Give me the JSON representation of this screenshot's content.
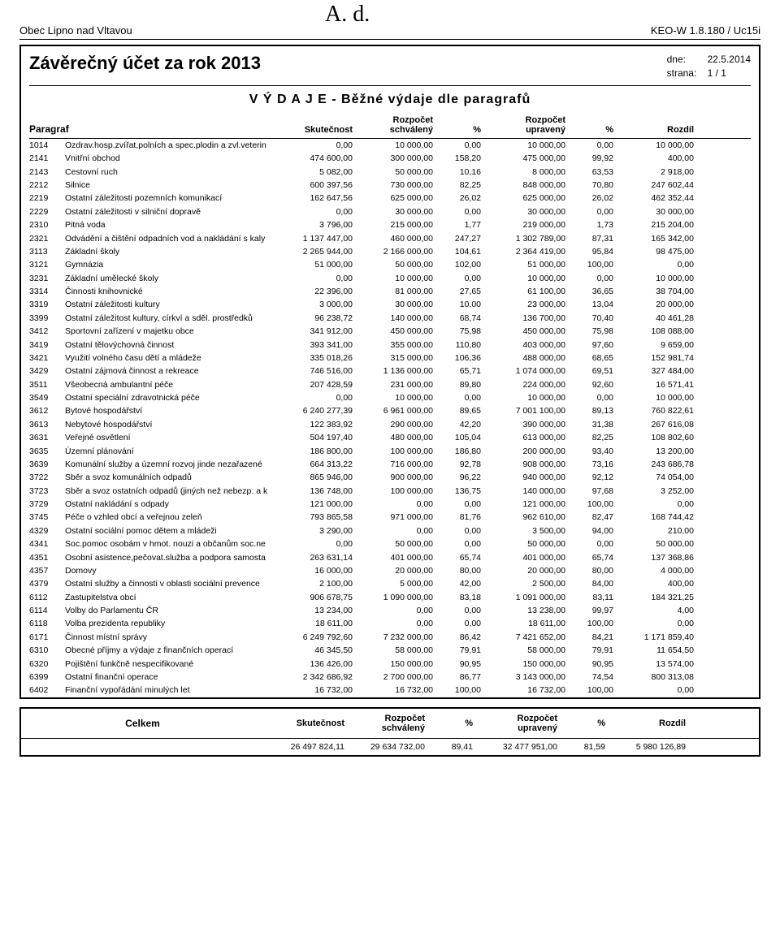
{
  "handwritten": "A. d.",
  "org_name": "Obec Lipno nad Vltavou",
  "keo": "KEO-W 1.8.180 / Uc15i",
  "main_title": "Závěrečný účet za rok 2013",
  "dne_label": "dne:",
  "dne_value": "22.5.2014",
  "strana_label": "strana:",
  "strana_value": "1 / 1",
  "subtitle": "V Ý D A J E  -  Běžné výdaje dle paragrafů",
  "col_paragraf": "Paragraf",
  "col_skutecnost": "Skutečnost",
  "col_rozpocet_schvaleny_l1": "Rozpočet",
  "col_rozpocet_schvaleny_l2": "schválený",
  "col_pct": "%",
  "col_rozpocet_upraveny_l1": "Rozpočet",
  "col_rozpocet_upraveny_l2": "upravený",
  "col_rozdil": "Rozdíl",
  "rows": [
    {
      "code": "1014",
      "name": "Ozdrav.hosp.zvířat,polních a spec.plodin a zvl.veterin",
      "skut": "0,00",
      "rsch": "10 000,00",
      "p1": "0,00",
      "rup": "10 000,00",
      "p2": "0,00",
      "rozd": "10 000,00"
    },
    {
      "code": "2141",
      "name": "Vnitřní obchod",
      "skut": "474 600,00",
      "rsch": "300 000,00",
      "p1": "158,20",
      "rup": "475 000,00",
      "p2": "99,92",
      "rozd": "400,00"
    },
    {
      "code": "2143",
      "name": "Cestovní ruch",
      "skut": "5 082,00",
      "rsch": "50 000,00",
      "p1": "10,16",
      "rup": "8 000,00",
      "p2": "63,53",
      "rozd": "2 918,00"
    },
    {
      "code": "2212",
      "name": "Silnice",
      "skut": "600 397,56",
      "rsch": "730 000,00",
      "p1": "82,25",
      "rup": "848 000,00",
      "p2": "70,80",
      "rozd": "247 602,44"
    },
    {
      "code": "2219",
      "name": "Ostatní záležitosti pozemních komunikací",
      "skut": "162 647,56",
      "rsch": "625 000,00",
      "p1": "26,02",
      "rup": "625 000,00",
      "p2": "26,02",
      "rozd": "462 352,44"
    },
    {
      "code": "2229",
      "name": "Ostatní záležitosti v silniční dopravě",
      "skut": "0,00",
      "rsch": "30 000,00",
      "p1": "0,00",
      "rup": "30 000,00",
      "p2": "0,00",
      "rozd": "30 000,00"
    },
    {
      "code": "2310",
      "name": "Pitná voda",
      "skut": "3 796,00",
      "rsch": "215 000,00",
      "p1": "1,77",
      "rup": "219 000,00",
      "p2": "1,73",
      "rozd": "215 204,00"
    },
    {
      "code": "2321",
      "name": "Odvádění a čištění odpadních vod a nakládání s kaly",
      "skut": "1 137 447,00",
      "rsch": "460 000,00",
      "p1": "247,27",
      "rup": "1 302 789,00",
      "p2": "87,31",
      "rozd": "165 342,00"
    },
    {
      "code": "3113",
      "name": "Základní školy",
      "skut": "2 265 944,00",
      "rsch": "2 166 000,00",
      "p1": "104,61",
      "rup": "2 364 419,00",
      "p2": "95,84",
      "rozd": "98 475,00"
    },
    {
      "code": "3121",
      "name": "Gymnázia",
      "skut": "51 000,00",
      "rsch": "50 000,00",
      "p1": "102,00",
      "rup": "51 000,00",
      "p2": "100,00",
      "rozd": "0,00"
    },
    {
      "code": "3231",
      "name": "Základní umělecké školy",
      "skut": "0,00",
      "rsch": "10 000,00",
      "p1": "0,00",
      "rup": "10 000,00",
      "p2": "0,00",
      "rozd": "10 000,00"
    },
    {
      "code": "3314",
      "name": "Činnosti knihovnické",
      "skut": "22 396,00",
      "rsch": "81 000,00",
      "p1": "27,65",
      "rup": "61 100,00",
      "p2": "36,65",
      "rozd": "38 704,00"
    },
    {
      "code": "3319",
      "name": "Ostatní záležitosti kultury",
      "skut": "3 000,00",
      "rsch": "30 000,00",
      "p1": "10,00",
      "rup": "23 000,00",
      "p2": "13,04",
      "rozd": "20 000,00"
    },
    {
      "code": "3399",
      "name": "Ostatní záležitost kultury, církví a sděl. prostředků",
      "skut": "96 238,72",
      "rsch": "140 000,00",
      "p1": "68,74",
      "rup": "136 700,00",
      "p2": "70,40",
      "rozd": "40 461,28"
    },
    {
      "code": "3412",
      "name": "Sportovní zařízení v majetku obce",
      "skut": "341 912,00",
      "rsch": "450 000,00",
      "p1": "75,98",
      "rup": "450 000,00",
      "p2": "75,98",
      "rozd": "108 088,00"
    },
    {
      "code": "3419",
      "name": "Ostatní tělovýchovná činnost",
      "skut": "393 341,00",
      "rsch": "355 000,00",
      "p1": "110,80",
      "rup": "403 000,00",
      "p2": "97,60",
      "rozd": "9 659,00"
    },
    {
      "code": "3421",
      "name": "Využití volného času dětí a mládeže",
      "skut": "335 018,26",
      "rsch": "315 000,00",
      "p1": "106,36",
      "rup": "488 000,00",
      "p2": "68,65",
      "rozd": "152 981,74"
    },
    {
      "code": "3429",
      "name": "Ostatní zájmová činnost a rekreace",
      "skut": "746 516,00",
      "rsch": "1 136 000,00",
      "p1": "65,71",
      "rup": "1 074 000,00",
      "p2": "69,51",
      "rozd": "327 484,00"
    },
    {
      "code": "3511",
      "name": "Všeobecná ambulantní péče",
      "skut": "207 428,59",
      "rsch": "231 000,00",
      "p1": "89,80",
      "rup": "224 000,00",
      "p2": "92,60",
      "rozd": "16 571,41"
    },
    {
      "code": "3549",
      "name": "Ostatní speciální zdravotnická péče",
      "skut": "0,00",
      "rsch": "10 000,00",
      "p1": "0,00",
      "rup": "10 000,00",
      "p2": "0,00",
      "rozd": "10 000,00"
    },
    {
      "code": "3612",
      "name": "Bytové hospodářství",
      "skut": "6 240 277,39",
      "rsch": "6 961 000,00",
      "p1": "89,65",
      "rup": "7 001 100,00",
      "p2": "89,13",
      "rozd": "760 822,61"
    },
    {
      "code": "3613",
      "name": "Nebytové hospodářství",
      "skut": "122 383,92",
      "rsch": "290 000,00",
      "p1": "42,20",
      "rup": "390 000,00",
      "p2": "31,38",
      "rozd": "267 616,08"
    },
    {
      "code": "3631",
      "name": "Veřejné osvětlení",
      "skut": "504 197,40",
      "rsch": "480 000,00",
      "p1": "105,04",
      "rup": "613 000,00",
      "p2": "82,25",
      "rozd": "108 802,60"
    },
    {
      "code": "3635",
      "name": "Územní plánování",
      "skut": "186 800,00",
      "rsch": "100 000,00",
      "p1": "186,80",
      "rup": "200 000,00",
      "p2": "93,40",
      "rozd": "13 200,00"
    },
    {
      "code": "3639",
      "name": "Komunální služby a územní rozvoj jinde nezařazené",
      "skut": "664 313,22",
      "rsch": "716 000,00",
      "p1": "92,78",
      "rup": "908 000,00",
      "p2": "73,16",
      "rozd": "243 686,78"
    },
    {
      "code": "3722",
      "name": "Sběr a svoz komunálních odpadů",
      "skut": "865 946,00",
      "rsch": "900 000,00",
      "p1": "96,22",
      "rup": "940 000,00",
      "p2": "92,12",
      "rozd": "74 054,00"
    },
    {
      "code": "3723",
      "name": "Sběr a svoz ostatních odpadů (jiných než nebezp. a k",
      "skut": "136 748,00",
      "rsch": "100 000,00",
      "p1": "136,75",
      "rup": "140 000,00",
      "p2": "97,68",
      "rozd": "3 252,00"
    },
    {
      "code": "3729",
      "name": "Ostatní nakládání s odpady",
      "skut": "121 000,00",
      "rsch": "0,00",
      "p1": "0,00",
      "rup": "121 000,00",
      "p2": "100,00",
      "rozd": "0,00"
    },
    {
      "code": "3745",
      "name": "Péče o vzhled obcí a veřejnou zeleň",
      "skut": "793 865,58",
      "rsch": "971 000,00",
      "p1": "81,76",
      "rup": "962 610,00",
      "p2": "82,47",
      "rozd": "168 744,42"
    },
    {
      "code": "4329",
      "name": "Ostatní sociální pomoc dětem a mládeži",
      "skut": "3 290,00",
      "rsch": "0,00",
      "p1": "0,00",
      "rup": "3 500,00",
      "p2": "94,00",
      "rozd": "210,00"
    },
    {
      "code": "4341",
      "name": "Soc.pomoc osobám v hmot. nouzi a občanům soc.ne",
      "skut": "0,00",
      "rsch": "50 000,00",
      "p1": "0,00",
      "rup": "50 000,00",
      "p2": "0,00",
      "rozd": "50 000,00"
    },
    {
      "code": "4351",
      "name": "Osobní asistence,pečovat.služba a podpora samosta",
      "skut": "263 631,14",
      "rsch": "401 000,00",
      "p1": "65,74",
      "rup": "401 000,00",
      "p2": "65,74",
      "rozd": "137 368,86"
    },
    {
      "code": "4357",
      "name": "Domovy",
      "skut": "16 000,00",
      "rsch": "20 000,00",
      "p1": "80,00",
      "rup": "20 000,00",
      "p2": "80,00",
      "rozd": "4 000,00"
    },
    {
      "code": "4379",
      "name": "Ostatní služby a činnosti v oblasti sociální prevence",
      "skut": "2 100,00",
      "rsch": "5 000,00",
      "p1": "42,00",
      "rup": "2 500,00",
      "p2": "84,00",
      "rozd": "400,00"
    },
    {
      "code": "6112",
      "name": "Zastupitelstva obcí",
      "skut": "906 678,75",
      "rsch": "1 090 000,00",
      "p1": "83,18",
      "rup": "1 091 000,00",
      "p2": "83,11",
      "rozd": "184 321,25"
    },
    {
      "code": "6114",
      "name": "Volby do Parlamentu ČR",
      "skut": "13 234,00",
      "rsch": "0,00",
      "p1": "0,00",
      "rup": "13 238,00",
      "p2": "99,97",
      "rozd": "4,00"
    },
    {
      "code": "6118",
      "name": "Volba prezidenta republiky",
      "skut": "18 611,00",
      "rsch": "0,00",
      "p1": "0,00",
      "rup": "18 611,00",
      "p2": "100,00",
      "rozd": "0,00"
    },
    {
      "code": "6171",
      "name": "Činnost místní správy",
      "skut": "6 249 792,60",
      "rsch": "7 232 000,00",
      "p1": "86,42",
      "rup": "7 421 652,00",
      "p2": "84,21",
      "rozd": "1 171 859,40"
    },
    {
      "code": "6310",
      "name": "Obecné příjmy a výdaje z finančních operací",
      "skut": "46 345,50",
      "rsch": "58 000,00",
      "p1": "79,91",
      "rup": "58 000,00",
      "p2": "79,91",
      "rozd": "11 654,50"
    },
    {
      "code": "6320",
      "name": "Pojištění funkčně nespecifikované",
      "skut": "136 426,00",
      "rsch": "150 000,00",
      "p1": "90,95",
      "rup": "150 000,00",
      "p2": "90,95",
      "rozd": "13 574,00"
    },
    {
      "code": "6399",
      "name": "Ostatní finanční operace",
      "skut": "2 342 686,92",
      "rsch": "2 700 000,00",
      "p1": "86,77",
      "rup": "3 143 000,00",
      "p2": "74,54",
      "rozd": "800 313,08"
    },
    {
      "code": "6402",
      "name": "Finanční vypořádání minulých let",
      "skut": "16 732,00",
      "rsch": "16 732,00",
      "p1": "100,00",
      "rup": "16 732,00",
      "p2": "100,00",
      "rozd": "0,00"
    }
  ],
  "sum_label": "Celkem",
  "sum": {
    "skut": "26 497 824,11",
    "rsch": "29 634 732,00",
    "p1": "89,41",
    "rup": "32 477 951,00",
    "p2": "81,59",
    "rozd": "5 980 126,89"
  }
}
